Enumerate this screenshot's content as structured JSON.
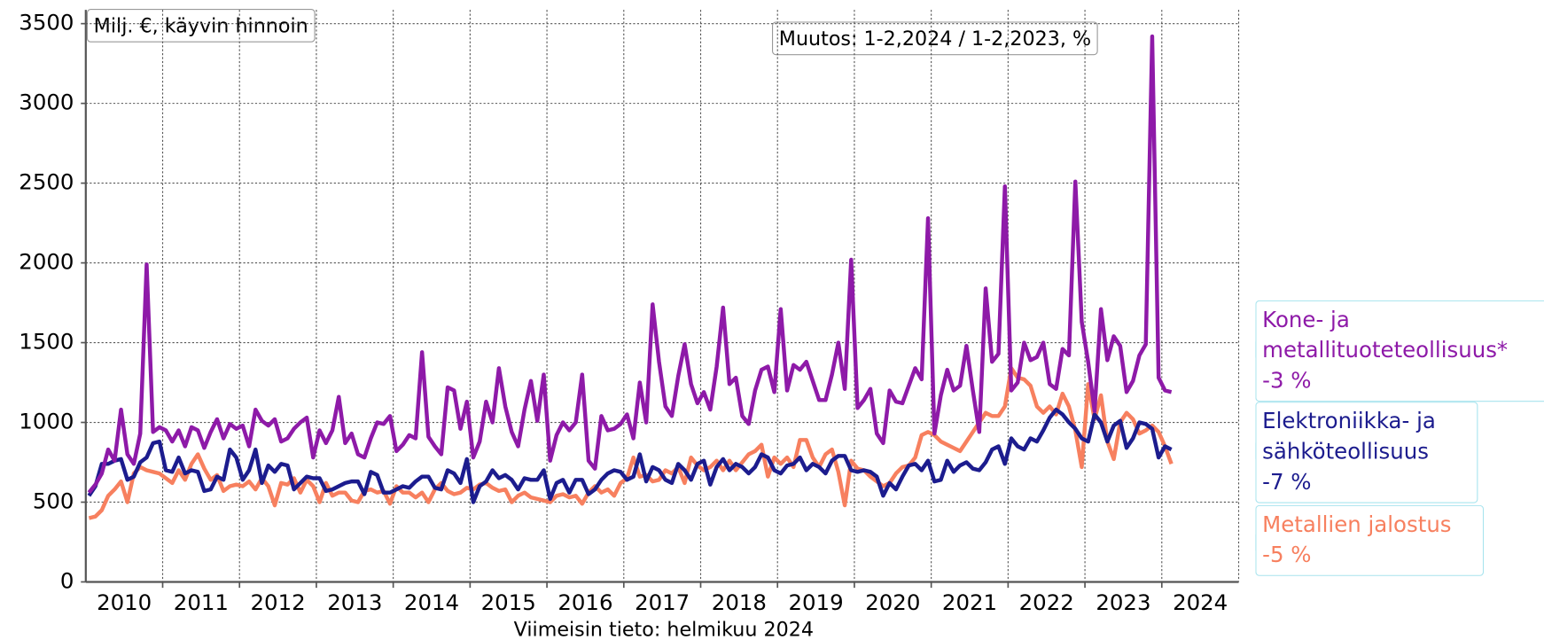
{
  "chart_data": {
    "type": "line",
    "title": "Milj. €, käyvin hinnoin",
    "subtitle": "Muutos: 1-2,2024 / 1-2,2023, %",
    "footer": "Viimeisin tieto: helmikuu 2024",
    "categories": [
      "2010",
      "2010",
      "2010",
      "2010",
      "2010",
      "2010",
      "2010",
      "2010",
      "2010",
      "2010",
      "2010",
      "2010",
      "2011",
      "2011",
      "2011",
      "2011",
      "2011",
      "2011",
      "2011",
      "2011",
      "2011",
      "2011",
      "2011",
      "2011",
      "2012",
      "2012",
      "2012",
      "2012",
      "2012",
      "2012",
      "2012",
      "2012",
      "2012",
      "2012",
      "2012",
      "2012",
      "2013",
      "2013",
      "2013",
      "2013",
      "2013",
      "2013",
      "2013",
      "2013",
      "2013",
      "2013",
      "2013",
      "2013",
      "2014",
      "2014",
      "2014",
      "2014",
      "2014",
      "2014",
      "2014",
      "2014",
      "2014",
      "2014",
      "2014",
      "2014",
      "2015",
      "2015",
      "2015",
      "2015",
      "2015",
      "2015",
      "2015",
      "2015",
      "2015",
      "2015",
      "2015",
      "2015",
      "2016",
      "2016",
      "2016",
      "2016",
      "2016",
      "2016",
      "2016",
      "2016",
      "2016",
      "2016",
      "2016",
      "2016",
      "2017",
      "2017",
      "2017",
      "2017",
      "2017",
      "2017",
      "2017",
      "2017",
      "2017",
      "2017",
      "2017",
      "2017",
      "2018",
      "2018",
      "2018",
      "2018",
      "2018",
      "2018",
      "2018",
      "2018",
      "2018",
      "2018",
      "2018",
      "2018",
      "2019",
      "2019",
      "2019",
      "2019",
      "2019",
      "2019",
      "2019",
      "2019",
      "2019",
      "2019",
      "2019",
      "2019",
      "2020",
      "2020",
      "2020",
      "2020",
      "2020",
      "2020",
      "2020",
      "2020",
      "2020",
      "2020",
      "2020",
      "2020",
      "2021",
      "2021",
      "2021",
      "2021",
      "2021",
      "2021",
      "2021",
      "2021",
      "2021",
      "2021",
      "2021",
      "2021",
      "2022",
      "2022",
      "2022",
      "2022",
      "2022",
      "2022",
      "2022",
      "2022",
      "2022",
      "2022",
      "2022",
      "2022",
      "2023",
      "2023",
      "2023",
      "2023",
      "2023",
      "2023",
      "2023",
      "2023",
      "2023",
      "2023",
      "2023",
      "2023",
      "2024",
      "2024"
    ],
    "series": [
      {
        "name": "Kone- ja metallituoteteollisuus*",
        "color": "#8e1aa8",
        "change": -3,
        "change_label": "-3 %",
        "values": [
          560,
          610,
          680,
          830,
          760,
          1080,
          800,
          740,
          930,
          1990,
          940,
          970,
          950,
          880,
          950,
          850,
          970,
          950,
          840,
          940,
          1020,
          900,
          990,
          960,
          980,
          850,
          1080,
          1010,
          980,
          1020,
          880,
          900,
          960,
          1000,
          1030,
          780,
          950,
          870,
          950,
          1160,
          870,
          930,
          800,
          780,
          900,
          1000,
          990,
          1040,
          820,
          860,
          920,
          900,
          1440,
          910,
          850,
          800,
          1220,
          1200,
          960,
          1130,
          780,
          880,
          1130,
          1000,
          1340,
          1100,
          940,
          850,
          1080,
          1260,
          1010,
          1300,
          760,
          920,
          1000,
          950,
          1000,
          1300,
          760,
          710,
          1040,
          950,
          960,
          990,
          1050,
          900,
          1250,
          1000,
          1740,
          1380,
          1100,
          1040,
          1290,
          1490,
          1240,
          1120,
          1190,
          1080,
          1350,
          1720,
          1240,
          1280,
          1040,
          990,
          1200,
          1330,
          1350,
          1190,
          1710,
          1200,
          1360,
          1330,
          1380,
          1260,
          1140,
          1140,
          1300,
          1500,
          1210,
          2020,
          1090,
          1140,
          1210,
          930,
          870,
          1200,
          1130,
          1120,
          1230,
          1340,
          1270,
          2280,
          930,
          1170,
          1330,
          1200,
          1230,
          1480,
          1200,
          940,
          1840,
          1380,
          1430,
          2480,
          1200,
          1250,
          1500,
          1390,
          1410,
          1500,
          1240,
          1210,
          1460,
          1420,
          2510,
          1630,
          1380,
          1070,
          1710,
          1390,
          1540,
          1480,
          1190,
          1260,
          1420,
          1490,
          3420,
          1280,
          1200,
          1190
        ]
      },
      {
        "name": "Elektroniikka- ja sähköteollisuus",
        "color": "#1c1c8e",
        "change": -7,
        "change_label": "-7 %",
        "values": [
          540,
          600,
          740,
          740,
          760,
          770,
          640,
          660,
          750,
          780,
          870,
          880,
          700,
          690,
          780,
          680,
          700,
          690,
          570,
          580,
          660,
          640,
          830,
          780,
          640,
          700,
          830,
          620,
          730,
          690,
          740,
          730,
          580,
          620,
          660,
          650,
          650,
          570,
          580,
          600,
          620,
          630,
          630,
          550,
          690,
          670,
          560,
          560,
          580,
          600,
          590,
          630,
          660,
          660,
          590,
          580,
          700,
          680,
          620,
          770,
          500,
          600,
          630,
          700,
          650,
          670,
          640,
          580,
          650,
          640,
          640,
          700,
          520,
          620,
          640,
          560,
          640,
          640,
          550,
          580,
          640,
          680,
          700,
          690,
          640,
          660,
          800,
          630,
          720,
          700,
          640,
          620,
          740,
          700,
          640,
          740,
          760,
          610,
          720,
          770,
          700,
          740,
          720,
          680,
          720,
          800,
          780,
          700,
          680,
          730,
          740,
          780,
          700,
          740,
          720,
          680,
          760,
          790,
          790,
          700,
          690,
          700,
          690,
          660,
          540,
          620,
          580,
          660,
          730,
          740,
          700,
          760,
          630,
          640,
          760,
          690,
          730,
          750,
          710,
          700,
          750,
          830,
          850,
          740,
          900,
          850,
          830,
          900,
          880,
          950,
          1030,
          1080,
          1050,
          1000,
          960,
          900,
          880,
          1050,
          1000,
          880,
          980,
          1010,
          840,
          900,
          1000,
          990,
          960,
          780,
          850,
          830
        ]
      },
      {
        "name": "Metallien jalostus",
        "color": "#f7805f",
        "change": -5,
        "change_label": "-5 %",
        "values": [
          400,
          410,
          450,
          540,
          580,
          630,
          500,
          680,
          720,
          700,
          690,
          680,
          650,
          620,
          700,
          640,
          740,
          800,
          710,
          640,
          670,
          570,
          600,
          610,
          600,
          630,
          580,
          650,
          600,
          480,
          620,
          610,
          650,
          560,
          640,
          600,
          500,
          620,
          540,
          560,
          560,
          510,
          500,
          570,
          580,
          560,
          570,
          490,
          600,
          560,
          560,
          530,
          560,
          500,
          580,
          620,
          570,
          550,
          560,
          590,
          580,
          610,
          620,
          590,
          570,
          580,
          500,
          540,
          560,
          530,
          520,
          510,
          500,
          540,
          550,
          530,
          540,
          490,
          560,
          600,
          560,
          580,
          540,
          620,
          650,
          780,
          660,
          670,
          630,
          640,
          700,
          680,
          720,
          620,
          780,
          730,
          700,
          720,
          760,
          700,
          760,
          700,
          750,
          800,
          820,
          860,
          660,
          780,
          740,
          780,
          720,
          890,
          890,
          780,
          720,
          800,
          830,
          690,
          480,
          760,
          710,
          700,
          660,
          630,
          600,
          620,
          680,
          720,
          730,
          780,
          920,
          940,
          920,
          880,
          860,
          840,
          820,
          880,
          940,
          1000,
          1060,
          1040,
          1040,
          1100,
          1340,
          1280,
          1270,
          1230,
          1100,
          1060,
          1100,
          1050,
          1180,
          1100,
          950,
          720,
          1240,
          1020,
          1170,
          880,
          770,
          1000,
          1060,
          1020,
          930,
          950,
          980,
          940,
          850,
          740
        ]
      }
    ],
    "ylim": [
      0,
      3500
    ],
    "yticks": [
      0,
      500,
      1000,
      1500,
      2000,
      2500,
      3000,
      3500
    ],
    "grid": true,
    "legend": "right"
  }
}
